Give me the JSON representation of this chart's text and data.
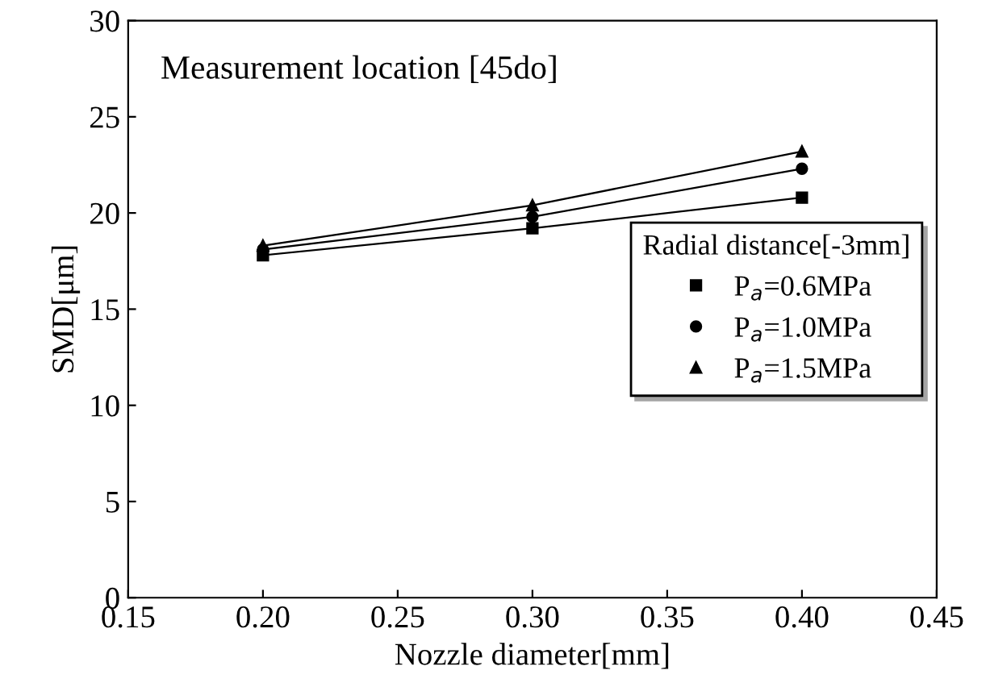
{
  "chart_data": {
    "type": "line",
    "xlabel": "Nozzle diameter[mm]",
    "ylabel": "SMD[μm]",
    "annotations": [
      "Measurement location [45do]"
    ],
    "x": [
      0.2,
      0.3,
      0.4
    ],
    "series": [
      {
        "name": "P$_{a}$=0.6MPa",
        "color": "#000000",
        "marker": "square",
        "values": [
          17.8,
          19.2,
          20.8
        ]
      },
      {
        "name": "P$_{a}$=1.0MPa",
        "color": "#000000",
        "marker": "circle",
        "values": [
          18.1,
          19.8,
          22.3
        ]
      },
      {
        "name": "P$_{a}$=1.5MPa",
        "color": "#000000",
        "marker": "triangle",
        "values": [
          18.3,
          20.4,
          23.2
        ]
      }
    ],
    "legend_title": "Radial distance[-3mm]",
    "legend": "center right",
    "xlim": [
      0.15,
      0.45
    ],
    "xticks": [
      0.15,
      {
        "value": 0.2,
        "label": "0.20"
      },
      0.25,
      {
        "value": 0.3,
        "label": "0.30"
      },
      0.35,
      {
        "value": 0.4,
        "label": "0.40"
      },
      0.45
    ],
    "ylim": [
      0,
      30
    ],
    "yticks": [
      0,
      5,
      10,
      15,
      20,
      25,
      30
    ],
    "line_style": "solid",
    "grid": false
  }
}
